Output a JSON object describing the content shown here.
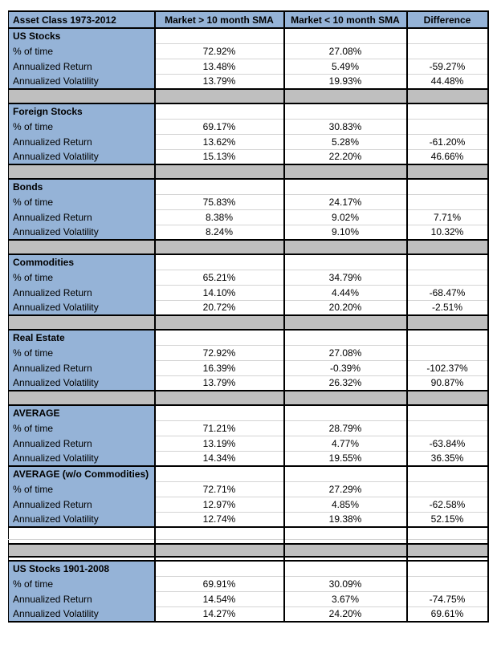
{
  "chart_data": {
    "type": "table",
    "columns": [
      "Asset Class 1973-2012",
      "Market > 10 month SMA",
      "Market < 10 month SMA",
      "Difference"
    ],
    "row_labels": [
      "% of time",
      "Annualized Return",
      "Annualized Volatility"
    ],
    "sections": [
      {
        "title": "US Stocks",
        "rows": [
          [
            "72.92%",
            "27.08%",
            ""
          ],
          [
            "13.48%",
            "5.49%",
            "-59.27%"
          ],
          [
            "13.79%",
            "19.93%",
            "44.48%"
          ]
        ],
        "separator_after": true
      },
      {
        "title": "Foreign Stocks",
        "rows": [
          [
            "69.17%",
            "30.83%",
            ""
          ],
          [
            "13.62%",
            "5.28%",
            "-61.20%"
          ],
          [
            "15.13%",
            "22.20%",
            "46.66%"
          ]
        ],
        "separator_after": true
      },
      {
        "title": "Bonds",
        "rows": [
          [
            "75.83%",
            "24.17%",
            ""
          ],
          [
            "8.38%",
            "9.02%",
            "7.71%"
          ],
          [
            "8.24%",
            "9.10%",
            "10.32%"
          ]
        ],
        "separator_after": true
      },
      {
        "title": "Commodities",
        "rows": [
          [
            "65.21%",
            "34.79%",
            ""
          ],
          [
            "14.10%",
            "4.44%",
            "-68.47%"
          ],
          [
            "20.72%",
            "20.20%",
            "-2.51%"
          ]
        ],
        "separator_after": true
      },
      {
        "title": "Real Estate",
        "rows": [
          [
            "72.92%",
            "27.08%",
            ""
          ],
          [
            "16.39%",
            "-0.39%",
            "-102.37%"
          ],
          [
            "13.79%",
            "26.32%",
            "90.87%"
          ]
        ],
        "separator_after": true
      },
      {
        "title": "AVERAGE",
        "rows": [
          [
            "71.21%",
            "28.79%",
            ""
          ],
          [
            "13.19%",
            "4.77%",
            "-63.84%"
          ],
          [
            "14.34%",
            "19.55%",
            "36.35%"
          ]
        ],
        "separator_after": false
      },
      {
        "title": "AVERAGE (w/o Commodities)",
        "rows": [
          [
            "72.71%",
            "27.29%",
            ""
          ],
          [
            "12.97%",
            "4.85%",
            "-62.58%"
          ],
          [
            "12.74%",
            "19.38%",
            "52.15%"
          ]
        ],
        "separator_after": false
      },
      {
        "title": "US Stocks 1901-2008",
        "rows": [
          [
            "69.91%",
            "30.09%",
            ""
          ],
          [
            "14.54%",
            "3.67%",
            "-74.75%"
          ],
          [
            "14.27%",
            "24.20%",
            "69.61%"
          ]
        ],
        "separator_after": false,
        "gap_before": true
      }
    ]
  },
  "colors": {
    "header_blue": "#95B3D7",
    "separator_gray": "#BFBFBF",
    "border_black": "#000000",
    "row_line_gray": "#D4D4D4",
    "background": "#FFFFFF"
  }
}
